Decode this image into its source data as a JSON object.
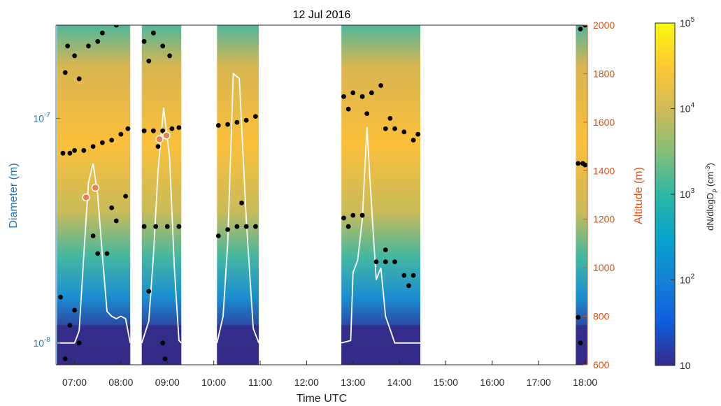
{
  "chart_data": {
    "type": "heatmap",
    "title": "12 Jul 2016",
    "xlabel": "Time UTC",
    "ylabel_left": "Diameter  (m)",
    "ylabel_right": "Altitude (m)",
    "colorbar_label": "dN/dlogD",
    "colorbar_label_sub": "p",
    "colorbar_units": "(cm",
    "colorbar_units_sup": "-3",
    "colorbar_units_close": ")",
    "x_ticks": [
      "07:00",
      "08:00",
      "09:00",
      "10:00",
      "11:00",
      "12:00",
      "13:00",
      "14:00",
      "15:00",
      "16:00",
      "17:00",
      "18:00"
    ],
    "x_range_hours": [
      6.6,
      18.05
    ],
    "y_left_scale": "log",
    "y_left_range_m": [
      8e-09,
      2.6e-07
    ],
    "y_left_ticks": [
      {
        "base": "10",
        "exp": "-8",
        "value": 1e-08
      },
      {
        "base": "10",
        "exp": "-7",
        "value": 1e-07
      }
    ],
    "y_right_range_m": [
      600,
      2000
    ],
    "y_right_ticks": [
      "600",
      "800",
      "1000",
      "1200",
      "1400",
      "1600",
      "1800",
      "2000"
    ],
    "colorbar_scale": "log",
    "colorbar_range": [
      10,
      100000
    ],
    "colorbar_ticks": [
      {
        "base": "10",
        "exp": "",
        "value": 10
      },
      {
        "base": "10",
        "exp": "2",
        "value": 100
      },
      {
        "base": "10",
        "exp": "3",
        "value": 1000
      },
      {
        "base": "10",
        "exp": "4",
        "value": 10000
      },
      {
        "base": "10",
        "exp": "5",
        "value": 100000
      }
    ],
    "colors": {
      "left_axis": "#1f77b4",
      "right_axis": "#d95319",
      "altitude_line": "#ffffff",
      "mode_points": "#000000",
      "marker_fill": "#e8834f",
      "colormap": [
        "#352a87",
        "#0f5cdd",
        "#1481d6",
        "#06a4ca",
        "#2eb7a4",
        "#87bf77",
        "#d1bb59",
        "#fec832",
        "#f9fb0e"
      ]
    },
    "measurement_segments_utc": [
      {
        "start": 6.62,
        "end": 8.2
      },
      {
        "start": 8.45,
        "end": 9.3
      },
      {
        "start": 10.07,
        "end": 10.97
      },
      {
        "start": 12.75,
        "end": 14.45
      },
      {
        "start": 17.8,
        "end": 18.05
      }
    ],
    "altitude_series": {
      "name": "Altitude",
      "points_utc_m": [
        [
          6.62,
          690
        ],
        [
          7.0,
          690
        ],
        [
          7.1,
          740
        ],
        [
          7.2,
          1050
        ],
        [
          7.3,
          1350
        ],
        [
          7.4,
          1430
        ],
        [
          7.5,
          1300
        ],
        [
          7.6,
          1050
        ],
        [
          7.7,
          820
        ],
        [
          7.8,
          800
        ],
        [
          7.9,
          790
        ],
        [
          8.0,
          800
        ],
        [
          8.1,
          790
        ],
        [
          8.2,
          690
        ],
        [
          8.45,
          690
        ],
        [
          8.6,
          780
        ],
        [
          8.7,
          1050
        ],
        [
          8.8,
          1400
        ],
        [
          8.92,
          1660
        ],
        [
          9.05,
          1450
        ],
        [
          9.15,
          1000
        ],
        [
          9.25,
          700
        ],
        [
          9.3,
          690
        ],
        [
          10.07,
          690
        ],
        [
          10.2,
          800
        ],
        [
          10.3,
          1100
        ],
        [
          10.42,
          1800
        ],
        [
          10.55,
          1780
        ],
        [
          10.7,
          1200
        ],
        [
          10.85,
          750
        ],
        [
          10.97,
          690
        ],
        [
          12.75,
          690
        ],
        [
          12.95,
          700
        ],
        [
          13.0,
          980
        ],
        [
          13.1,
          1030
        ],
        [
          13.2,
          1200
        ],
        [
          13.3,
          1580
        ],
        [
          13.4,
          1250
        ],
        [
          13.5,
          950
        ],
        [
          13.6,
          1000
        ],
        [
          13.7,
          800
        ],
        [
          13.9,
          690
        ],
        [
          14.45,
          690
        ]
      ]
    },
    "altitude_markers": {
      "points_utc_m": [
        [
          7.25,
          1290
        ],
        [
          7.45,
          1330
        ],
        [
          8.83,
          1530
        ],
        [
          8.98,
          1545
        ]
      ]
    },
    "mode_diameter_series": {
      "name": "Mode diameter",
      "points_utc_m": [
        [
          6.75,
          7e-08
        ],
        [
          6.9,
          7e-08
        ],
        [
          7.0,
          7.2e-08
        ],
        [
          7.2,
          7.2e-08
        ],
        [
          7.4,
          7.5e-08
        ],
        [
          7.6,
          7.8e-08
        ],
        [
          7.8,
          8e-08
        ],
        [
          8.0,
          8.5e-08
        ],
        [
          8.15,
          9e-08
        ],
        [
          6.8,
          1.6e-07
        ],
        [
          7.0,
          1.9e-07
        ],
        [
          7.3,
          2.1e-07
        ],
        [
          7.6,
          2.4e-07
        ],
        [
          7.9,
          2.6e-07
        ],
        [
          6.85,
          2.1e-07
        ],
        [
          7.1,
          1.5e-07
        ],
        [
          7.5,
          2.2e-07
        ],
        [
          7.5,
          2.5e-08
        ],
        [
          7.7,
          2.5e-08
        ],
        [
          7.9,
          3.5e-08
        ],
        [
          8.1,
          4.5e-08
        ],
        [
          7.4,
          3e-08
        ],
        [
          7.8,
          4e-08
        ],
        [
          6.7,
          1.6e-08
        ],
        [
          6.9,
          1.2e-08
        ],
        [
          7.1,
          1e-08
        ],
        [
          6.8,
          8.5e-09
        ],
        [
          7.0,
          1.4e-08
        ],
        [
          8.5,
          8.8e-08
        ],
        [
          8.7,
          8.8e-08
        ],
        [
          8.9,
          8.8e-08
        ],
        [
          9.1,
          9e-08
        ],
        [
          9.25,
          9.1e-08
        ],
        [
          8.8,
          7.5e-08
        ],
        [
          8.5,
          3.3e-08
        ],
        [
          8.75,
          3.3e-08
        ],
        [
          9.0,
          3.3e-08
        ],
        [
          9.25,
          3.3e-08
        ],
        [
          8.5,
          2.2e-07
        ],
        [
          8.7,
          2.4e-07
        ],
        [
          8.9,
          2.1e-07
        ],
        [
          9.05,
          1.9e-07
        ],
        [
          8.6,
          1.8e-07
        ],
        [
          8.6,
          1.7e-08
        ],
        [
          8.9,
          1e-08
        ],
        [
          8.95,
          8.5e-09
        ],
        [
          10.1,
          9.3e-08
        ],
        [
          10.3,
          9.4e-08
        ],
        [
          10.5,
          9.6e-08
        ],
        [
          10.7,
          9.8e-08
        ],
        [
          10.9,
          1.02e-07
        ],
        [
          10.1,
          3e-08
        ],
        [
          10.3,
          3.2e-08
        ],
        [
          10.5,
          3.3e-08
        ],
        [
          10.7,
          3.3e-08
        ],
        [
          10.9,
          3.3e-08
        ],
        [
          10.6,
          4.2e-08
        ],
        [
          12.8,
          1.25e-07
        ],
        [
          13.0,
          1.3e-07
        ],
        [
          13.2,
          1.25e-07
        ],
        [
          13.4,
          1.3e-07
        ],
        [
          13.6,
          1.4e-07
        ],
        [
          12.9,
          1.1e-07
        ],
        [
          13.3,
          1.05e-07
        ],
        [
          13.7,
          9e-08
        ],
        [
          13.9,
          9e-08
        ],
        [
          14.1,
          8.7e-08
        ],
        [
          14.3,
          8e-08
        ],
        [
          13.8,
          1e-07
        ],
        [
          14.4,
          8.5e-08
        ],
        [
          12.8,
          3.6e-08
        ],
        [
          13.0,
          3.7e-08
        ],
        [
          13.2,
          3.7e-08
        ],
        [
          12.9,
          3.3e-08
        ],
        [
          13.5,
          2.3e-08
        ],
        [
          13.7,
          2.3e-08
        ],
        [
          13.9,
          2.3e-08
        ],
        [
          14.1,
          2e-08
        ],
        [
          14.3,
          2e-08
        ],
        [
          14.2,
          1.8e-08
        ],
        [
          13.7,
          2.6e-08
        ],
        [
          17.85,
          6.3e-08
        ],
        [
          17.95,
          6.3e-08
        ],
        [
          18.0,
          6.2e-08
        ],
        [
          17.9,
          2.5e-07
        ],
        [
          18.0,
          2.6e-07
        ],
        [
          17.85,
          1.3e-08
        ],
        [
          17.9,
          1e-08
        ]
      ]
    },
    "grid": false,
    "legend": "colorbar-right"
  }
}
